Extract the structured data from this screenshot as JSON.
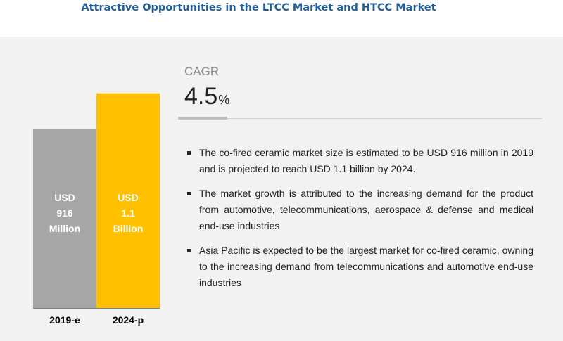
{
  "title": "Attractive Opportunities in the LTCC Market and HTCC Market",
  "chart_data": {
    "type": "bar",
    "categories": [
      "2019-e",
      "2024-p"
    ],
    "values": [
      916,
      1100
    ],
    "unit": "USD million",
    "bar_labels": [
      [
        "USD",
        "916",
        "Million"
      ],
      [
        "USD",
        "1.1",
        "Billion"
      ]
    ],
    "colors": [
      "#a6a6a6",
      "#ffc000"
    ],
    "ylim": [
      0,
      1200
    ]
  },
  "cagr": {
    "label": "CAGR",
    "value": "4.5",
    "unit": "%"
  },
  "bullets": [
    "The co-fired ceramic market size is estimated to be USD 916 million in 2019 and is projected to reach USD 1.1 billion by 2024.",
    "The market growth is attributed to the increasing demand for the product from automotive, telecommunications, aerospace & defense and medical end-use industries",
    "Asia Pacific is expected to be the largest market for co-fired ceramic, owning to the increasing demand from telecommunications and automotive end-use industries"
  ]
}
